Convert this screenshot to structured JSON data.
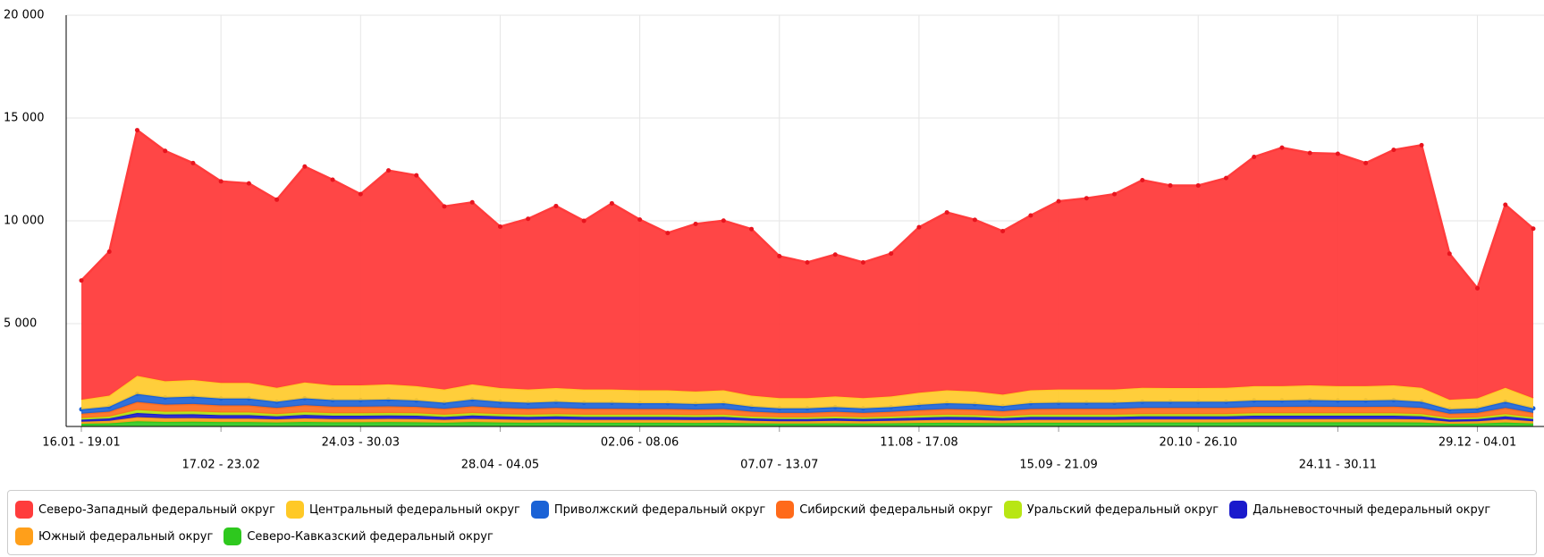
{
  "chart_data": {
    "type": "area",
    "stacked": true,
    "categories": [
      "16.01 - 19.01",
      null,
      null,
      null,
      null,
      "17.02 - 23.02",
      null,
      null,
      null,
      null,
      "24.03 - 30.03",
      null,
      null,
      null,
      null,
      "28.04 - 04.05",
      null,
      null,
      null,
      null,
      "02.06 - 08.06",
      null,
      null,
      null,
      null,
      "07.07 - 13.07",
      null,
      null,
      null,
      null,
      "11.08 - 17.08",
      null,
      null,
      null,
      null,
      "15.09 - 21.09",
      null,
      null,
      null,
      null,
      "20.10 - 26.10",
      null,
      null,
      null,
      null,
      "24.11 - 30.11",
      null,
      null,
      null,
      null,
      "29.12 - 04.01",
      null,
      null
    ],
    "ylim": [
      0,
      20000
    ],
    "yticks": [
      {
        "value": 5000,
        "label": "5 000"
      },
      {
        "value": 10000,
        "label": "10 000"
      },
      {
        "value": 15000,
        "label": "15 000"
      },
      {
        "value": 20000,
        "label": "20 000"
      }
    ],
    "grid": true,
    "series": [
      {
        "name": "Северо-Западный федеральный округ",
        "color": "#ff3c3c",
        "values": [
          5800,
          7000,
          11950,
          11200,
          10550,
          9800,
          9700,
          9150,
          10500,
          10000,
          9300,
          10400,
          10250,
          8900,
          8850,
          7850,
          8300,
          8850,
          8200,
          9050,
          8300,
          7650,
          8150,
          8250,
          8100,
          6900,
          6600,
          6900,
          6600,
          6950,
          8050,
          8650,
          8350,
          7950,
          8500,
          9150,
          9300,
          9500,
          10100,
          9850,
          9850,
          10200,
          11150,
          11600,
          11300,
          11300,
          10850,
          11450,
          11800,
          7100,
          5350,
          8900,
          8250
        ]
      },
      {
        "name": "Центральный федеральный округ",
        "color": "#ffc926",
        "values": [
          470,
          540,
          880,
          790,
          810,
          760,
          760,
          680,
          770,
          720,
          720,
          740,
          700,
          650,
          740,
          670,
          650,
          670,
          650,
          650,
          630,
          630,
          610,
          630,
          540,
          500,
          500,
          520,
          500,
          520,
          590,
          630,
          610,
          560,
          630,
          650,
          650,
          650,
          680,
          670,
          670,
          680,
          700,
          700,
          720,
          700,
          700,
          720,
          680,
          470,
          490,
          680,
          490
        ]
      },
      {
        "name": "Приволжский федеральный округ",
        "color": "#1a62d6",
        "values": [
          210,
          240,
          390,
          350,
          360,
          340,
          340,
          300,
          340,
          320,
          320,
          330,
          310,
          290,
          330,
          300,
          290,
          300,
          290,
          290,
          280,
          280,
          270,
          280,
          240,
          220,
          220,
          230,
          220,
          230,
          260,
          280,
          270,
          250,
          280,
          290,
          290,
          290,
          300,
          300,
          300,
          300,
          310,
          310,
          320,
          310,
          310,
          320,
          300,
          210,
          220,
          300,
          220
        ]
      },
      {
        "name": "Сибирский федеральный округ",
        "color": "#ff6a1a",
        "values": [
          210,
          240,
          390,
          350,
          360,
          340,
          340,
          300,
          340,
          320,
          320,
          330,
          310,
          290,
          330,
          300,
          290,
          300,
          290,
          290,
          280,
          280,
          270,
          280,
          240,
          220,
          220,
          230,
          220,
          230,
          260,
          280,
          270,
          250,
          280,
          290,
          290,
          290,
          300,
          300,
          300,
          300,
          310,
          310,
          320,
          310,
          310,
          320,
          300,
          210,
          220,
          300,
          220
        ]
      },
      {
        "name": "Уральский федеральный округ",
        "color": "#b8e614",
        "values": [
          80,
          90,
          150,
          130,
          140,
          130,
          130,
          110,
          130,
          120,
          120,
          120,
          120,
          110,
          120,
          110,
          110,
          110,
          110,
          110,
          110,
          110,
          100,
          110,
          90,
          80,
          80,
          90,
          80,
          90,
          100,
          110,
          100,
          90,
          110,
          110,
          110,
          110,
          110,
          110,
          110,
          110,
          120,
          120,
          120,
          120,
          120,
          120,
          110,
          80,
          80,
          110,
          80
        ]
      },
      {
        "name": "Дальневосточный федеральный округ",
        "color": "#1a1acc",
        "values": [
          100,
          120,
          200,
          180,
          180,
          170,
          170,
          150,
          170,
          160,
          160,
          160,
          160,
          140,
          160,
          150,
          140,
          150,
          140,
          140,
          140,
          140,
          140,
          140,
          120,
          110,
          110,
          120,
          110,
          120,
          130,
          140,
          140,
          120,
          140,
          140,
          140,
          140,
          150,
          150,
          150,
          150,
          160,
          160,
          160,
          160,
          160,
          160,
          150,
          100,
          110,
          150,
          110
        ]
      },
      {
        "name": "Южный федеральный округ",
        "color": "#ff9f1a",
        "values": [
          100,
          120,
          200,
          180,
          180,
          170,
          170,
          150,
          170,
          160,
          160,
          160,
          160,
          140,
          160,
          150,
          140,
          150,
          140,
          140,
          140,
          140,
          140,
          140,
          120,
          110,
          110,
          120,
          110,
          120,
          130,
          140,
          140,
          120,
          140,
          140,
          140,
          140,
          150,
          150,
          150,
          150,
          160,
          160,
          160,
          160,
          160,
          160,
          150,
          100,
          110,
          150,
          110
        ]
      },
      {
        "name": "Северо-Кавказский федеральный округ",
        "color": "#2ec81e",
        "values": [
          130,
          150,
          250,
          220,
          230,
          210,
          210,
          190,
          220,
          200,
          200,
          210,
          200,
          180,
          210,
          190,
          180,
          190,
          180,
          180,
          180,
          180,
          170,
          180,
          150,
          140,
          140,
          150,
          140,
          150,
          170,
          180,
          170,
          160,
          180,
          180,
          180,
          180,
          190,
          190,
          190,
          190,
          200,
          200,
          200,
          200,
          200,
          200,
          190,
          130,
          140,
          190,
          140
        ]
      }
    ],
    "legend": "bottom"
  }
}
